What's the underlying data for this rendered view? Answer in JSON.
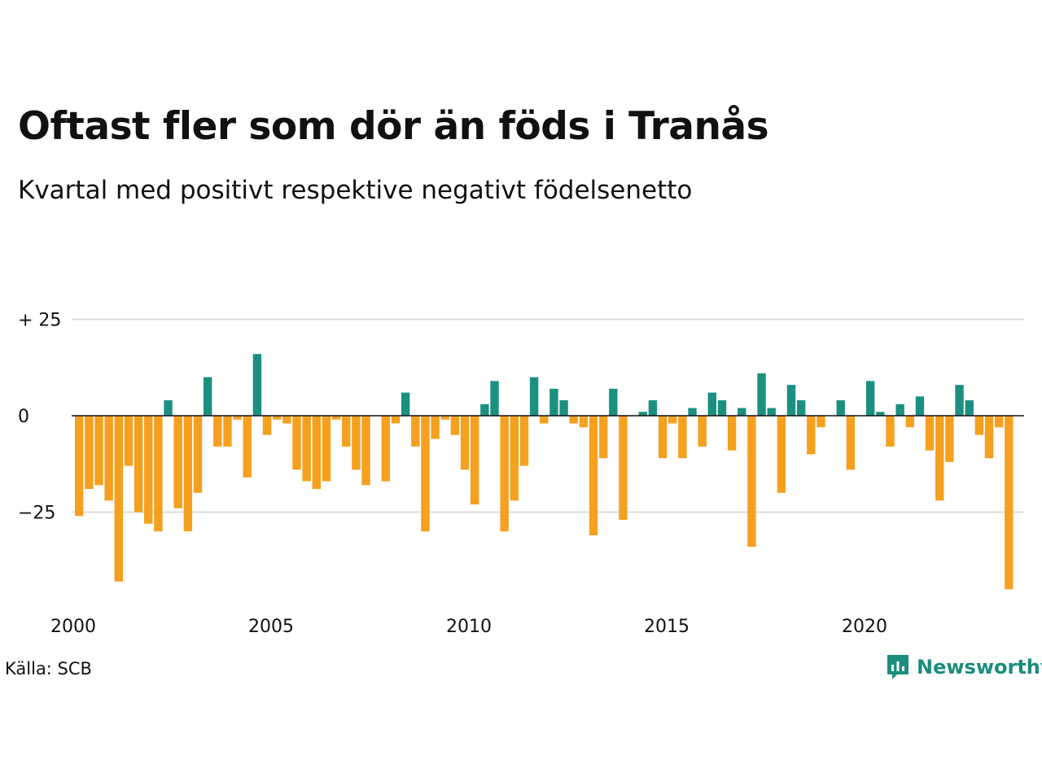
{
  "header": {
    "title": "Oftast fler som dör än föds i Tranås",
    "subtitle": "Kvartal med positivt respektive negativt födelsenetto"
  },
  "footer": {
    "source": "Källa: SCB",
    "brand": "Newsworthy"
  },
  "colors": {
    "positive": "#1b9080",
    "negative": "#f5a01e",
    "grid": "#dddddd",
    "brand": "#1b8c7e"
  },
  "chart_data": {
    "type": "bar",
    "title": "Oftast fler som dör än föds i Tranås",
    "subtitle": "Kvartal med positivt respektive negativt födelsenetto",
    "ylim": [
      -47,
      33
    ],
    "yticks": [
      {
        "value": 25,
        "label": "+ 25"
      },
      {
        "value": 0,
        "label": "0"
      },
      {
        "value": -25,
        "label": "−25"
      }
    ],
    "xticks": [
      {
        "year": 2000,
        "label": "2000"
      },
      {
        "year": 2005,
        "label": "2005"
      },
      {
        "year": 2010,
        "label": "2010"
      },
      {
        "year": 2015,
        "label": "2015"
      },
      {
        "year": 2020,
        "label": "2020"
      }
    ],
    "start_quarter": "2000Q1",
    "grid": true,
    "values": [
      -26,
      -19,
      -18,
      -22,
      -43,
      -13,
      -25,
      -28,
      -30,
      4,
      -24,
      -30,
      -20,
      10,
      -8,
      -8,
      -1,
      -16,
      16,
      -5,
      -1,
      -2,
      -14,
      -17,
      -19,
      -17,
      -1,
      -8,
      -14,
      -18,
      0,
      -17,
      -2,
      6,
      -8,
      -30,
      -6,
      -1,
      -5,
      -14,
      -23,
      3,
      9,
      -30,
      -22,
      -13,
      10,
      -2,
      7,
      4,
      -2,
      -3,
      -31,
      -11,
      7,
      -27,
      0,
      1,
      4,
      -11,
      -2,
      -11,
      2,
      -8,
      6,
      4,
      -9,
      2,
      -34,
      11,
      2,
      -20,
      8,
      4,
      -10,
      -3,
      0,
      4,
      -14,
      0,
      9,
      1,
      -8,
      3,
      -3,
      5,
      -9,
      -22,
      -12,
      8,
      4,
      -5,
      -11,
      -3,
      -45
    ]
  }
}
